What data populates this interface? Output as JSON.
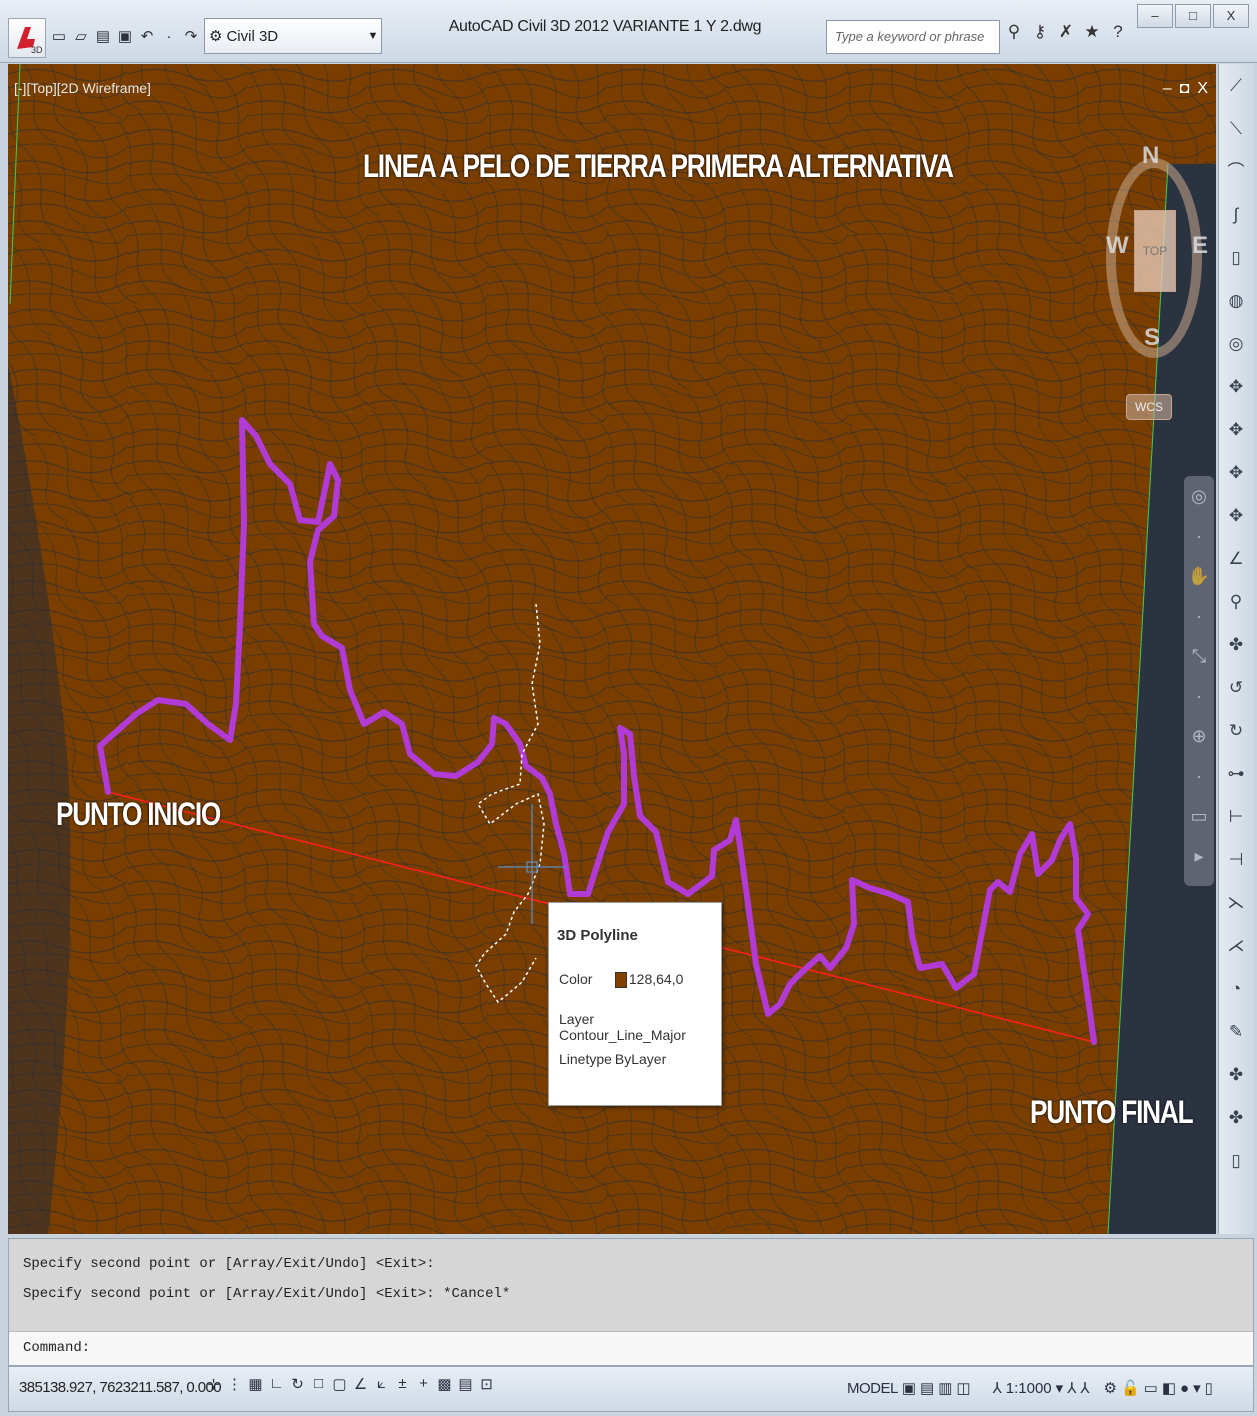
{
  "window": {
    "title": "AutoCAD Civil 3D 2012    VARIANTE 1 Y 2.dwg",
    "workspace": "Civil 3D",
    "search_placeholder": "Type a keyword or phrase",
    "controls": [
      "–",
      "□",
      "X"
    ]
  },
  "quick_access": {
    "icons": [
      "new-icon",
      "open-icon",
      "save-icon",
      "print-icon",
      "undo-icon",
      "redo-icon"
    ]
  },
  "viewport": {
    "label": "[-][Top][2D Wireframe]",
    "controls": [
      "–",
      "◘",
      "X"
    ],
    "title": "LINEA A PELO DE TIERRA PRIMERA ALTERNATIVA",
    "start_label": "PUNTO INICIO",
    "end_label": "PUNTO FINAL",
    "colors": {
      "background": "#7a3f00",
      "contour": "#2a2c34",
      "route": "#b23ad6",
      "straight_line": "#ff1e1e",
      "selection": "#ffffff"
    }
  },
  "viewcube": {
    "north": "N",
    "south": "S",
    "east": "E",
    "west": "W",
    "face": "TOP",
    "wcs": "WCS"
  },
  "tooltip": {
    "title": "3D Polyline",
    "color_label": "Color",
    "color_value": "128,64,0",
    "layer_label": "Layer",
    "layer_value": "Contour_Line_Major",
    "linetype_label": "Linetype",
    "linetype_value": "ByLayer"
  },
  "command_line": {
    "history": [
      "Specify second point or [Array/Exit/Undo] <Exit>:",
      "Specify second point or [Array/Exit/Undo] <Exit>: *Cancel*"
    ],
    "prompt": "Command:"
  },
  "status_bar": {
    "coordinates": "385138.927, 7623211.587, 0.000",
    "model": "MODEL",
    "annotation_scale": "1:1000"
  }
}
